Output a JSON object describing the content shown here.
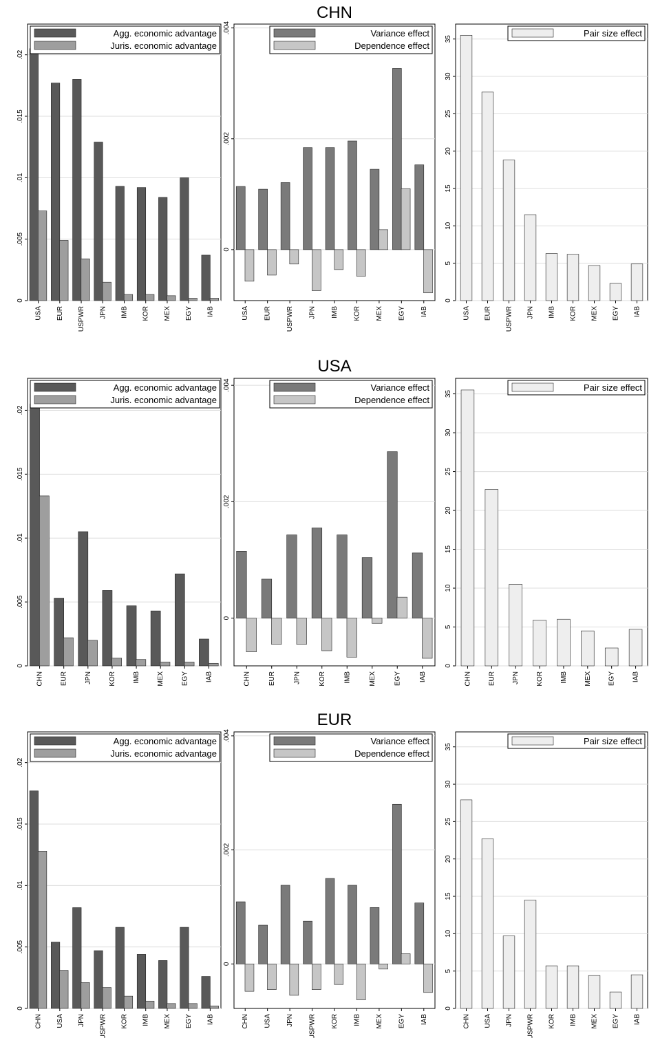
{
  "colors": {
    "agg": "#595959",
    "juris": "#9e9e9e",
    "variance": "#7a7a7a",
    "dependence": "#c6c6c6",
    "pairsize": "#eeeeee",
    "grid": "#dcdcdc"
  },
  "chart_data": [
    {
      "group": 0,
      "panel": "advantage",
      "type": "bar",
      "title": "",
      "categories": [
        "USA",
        "EUR",
        "USPWR",
        "JPN",
        "IMB",
        "KOR",
        "MEX",
        "EGY",
        "IAB"
      ],
      "series": [
        {
          "name": "Agg. economic advantage",
          "values": [
            0.0205,
            0.0177,
            0.018,
            0.0129,
            0.0093,
            0.0092,
            0.0084,
            0.01,
            0.0037
          ]
        },
        {
          "name": "Juris. economic advantage",
          "values": [
            0.0073,
            0.0049,
            0.0034,
            0.0015,
            0.0005,
            0.0005,
            0.0004,
            0.0002,
            0.0002
          ]
        }
      ],
      "ylim": [
        0,
        0.0225
      ],
      "yticks": [
        0,
        0.005,
        0.01,
        0.015,
        0.02
      ],
      "yticklabels": [
        "0",
        ".005",
        ".01",
        ".015",
        ".02"
      ],
      "legend": "top-right",
      "grid": true
    },
    {
      "group": 0,
      "panel": "decomposition",
      "type": "bar",
      "title": "CHN",
      "categories": [
        "USA",
        "EUR",
        "USPWR",
        "JPN",
        "IMB",
        "KOR",
        "MEX",
        "EGY",
        "IAB"
      ],
      "series": [
        {
          "name": "Variance effect",
          "values": [
            0.00114,
            0.00109,
            0.00121,
            0.00184,
            0.00184,
            0.00196,
            0.00145,
            0.00327,
            0.00153
          ]
        },
        {
          "name": "Dependence effect",
          "values": [
            -0.00057,
            -0.00046,
            -0.00026,
            -0.00074,
            -0.00036,
            -0.00048,
            0.00036,
            0.0011,
            -0.00078
          ]
        }
      ],
      "ylim": [
        -0.00092,
        0.00407
      ],
      "yticks": [
        0,
        0.002,
        0.004
      ],
      "yticklabels": [
        "0",
        ".002",
        ".004"
      ],
      "legend": "top-right",
      "grid": true
    },
    {
      "group": 0,
      "panel": "pairsize",
      "type": "bar",
      "title": "",
      "categories": [
        "USA",
        "EUR",
        "USPWR",
        "JPN",
        "IMB",
        "KOR",
        "MEX",
        "EGY",
        "IAB"
      ],
      "series": [
        {
          "name": "Pair size effect",
          "values": [
            35.5,
            27.9,
            18.8,
            11.5,
            6.3,
            6.2,
            4.7,
            2.3,
            4.9
          ]
        }
      ],
      "ylim": [
        0,
        37
      ],
      "yticks": [
        0,
        5,
        10,
        15,
        20,
        25,
        30,
        35
      ],
      "yticklabels": [
        "0",
        "5",
        "10",
        "15",
        "20",
        "25",
        "30",
        "35"
      ],
      "legend": "top-right",
      "grid": true
    },
    {
      "group": 1,
      "panel": "advantage",
      "type": "bar",
      "title": "",
      "categories": [
        "CHN",
        "EUR",
        "JPN",
        "KOR",
        "IMB",
        "MEX",
        "EGY",
        "IAB"
      ],
      "series": [
        {
          "name": "Agg. economic advantage",
          "values": [
            0.0205,
            0.0053,
            0.0105,
            0.0059,
            0.0047,
            0.0043,
            0.0072,
            0.0021
          ]
        },
        {
          "name": "Juris. economic advantage",
          "values": [
            0.0133,
            0.0022,
            0.002,
            0.0006,
            0.0005,
            0.0003,
            0.0003,
            0.0002
          ]
        }
      ],
      "ylim": [
        0,
        0.0225
      ],
      "yticks": [
        0,
        0.005,
        0.01,
        0.015,
        0.02
      ],
      "yticklabels": [
        "0",
        ".005",
        ".01",
        ".015",
        ".02"
      ],
      "legend": "top-right",
      "grid": true
    },
    {
      "group": 1,
      "panel": "decomposition",
      "type": "bar",
      "title": "USA",
      "categories": [
        "CHN",
        "EUR",
        "JPN",
        "KOR",
        "IMB",
        "MEX",
        "EGY",
        "IAB"
      ],
      "series": [
        {
          "name": "Variance effect",
          "values": [
            0.00115,
            0.00067,
            0.00143,
            0.00155,
            0.00143,
            0.00104,
            0.00286,
            0.00112
          ]
        },
        {
          "name": "Dependence effect",
          "values": [
            -0.00058,
            -0.00045,
            -0.00045,
            -0.00056,
            -0.00067,
            -9e-05,
            0.00036,
            -0.00069
          ]
        }
      ],
      "ylim": [
        -0.00082,
        0.00412
      ],
      "yticks": [
        0,
        0.002,
        0.004
      ],
      "yticklabels": [
        "0",
        ".002",
        ".004"
      ],
      "legend": "top-right",
      "grid": true
    },
    {
      "group": 1,
      "panel": "pairsize",
      "type": "bar",
      "title": "",
      "categories": [
        "CHN",
        "EUR",
        "JPN",
        "KOR",
        "IMB",
        "MEX",
        "EGY",
        "IAB"
      ],
      "series": [
        {
          "name": "Pair size effect",
          "values": [
            35.5,
            22.7,
            10.5,
            5.9,
            6.0,
            4.5,
            2.3,
            4.7
          ]
        }
      ],
      "ylim": [
        0,
        37
      ],
      "yticks": [
        0,
        5,
        10,
        15,
        20,
        25,
        30,
        35
      ],
      "yticklabels": [
        "0",
        "5",
        "10",
        "15",
        "20",
        "25",
        "30",
        "35"
      ],
      "legend": "top-right",
      "grid": true
    },
    {
      "group": 2,
      "panel": "advantage",
      "type": "bar",
      "title": "",
      "categories": [
        "CHN",
        "USA",
        "JPN",
        "USPWR",
        "KOR",
        "IMB",
        "MEX",
        "EGY",
        "IAB"
      ],
      "series": [
        {
          "name": "Agg. economic advantage",
          "values": [
            0.0177,
            0.0054,
            0.0082,
            0.0047,
            0.0066,
            0.0044,
            0.0039,
            0.0066,
            0.0026
          ]
        },
        {
          "name": "Juris. economic advantage",
          "values": [
            0.0128,
            0.0031,
            0.0021,
            0.0017,
            0.001,
            0.0006,
            0.0004,
            0.0004,
            0.0002
          ]
        }
      ],
      "ylim": [
        0,
        0.0225
      ],
      "yticks": [
        0,
        0.005,
        0.01,
        0.015,
        0.02
      ],
      "yticklabels": [
        "0",
        ".005",
        ".01",
        ".015",
        ".02"
      ],
      "legend": "top-right",
      "grid": true
    },
    {
      "group": 2,
      "panel": "decomposition",
      "type": "bar",
      "title": "EUR",
      "categories": [
        "CHN",
        "USA",
        "JPN",
        "USPWR",
        "KOR",
        "IMB",
        "MEX",
        "EGY",
        "IAB"
      ],
      "series": [
        {
          "name": "Variance effect",
          "values": [
            0.00109,
            0.00068,
            0.00138,
            0.00075,
            0.0015,
            0.00138,
            0.00099,
            0.0028,
            0.00107
          ]
        },
        {
          "name": "Dependence effect",
          "values": [
            -0.00048,
            -0.00045,
            -0.00055,
            -0.00045,
            -0.00036,
            -0.00063,
            -9e-05,
            0.00018,
            -0.0005
          ]
        }
      ],
      "ylim": [
        -0.00078,
        0.00407
      ],
      "yticks": [
        0,
        0.002,
        0.004
      ],
      "yticklabels": [
        "0",
        ".002",
        ".004"
      ],
      "legend": "top-right",
      "grid": true
    },
    {
      "group": 2,
      "panel": "pairsize",
      "type": "bar",
      "title": "",
      "categories": [
        "CHN",
        "USA",
        "JPN",
        "USPWR",
        "KOR",
        "IMB",
        "MEX",
        "EGY",
        "IAB"
      ],
      "series": [
        {
          "name": "Pair size effect",
          "values": [
            27.9,
            22.7,
            9.7,
            14.5,
            5.7,
            5.7,
            4.4,
            2.2,
            4.5
          ]
        }
      ],
      "ylim": [
        0,
        37
      ],
      "yticks": [
        0,
        5,
        10,
        15,
        20,
        25,
        30,
        35
      ],
      "yticklabels": [
        "0",
        "5",
        "10",
        "15",
        "20",
        "25",
        "30",
        "35"
      ],
      "legend": "top-right",
      "grid": true
    }
  ]
}
